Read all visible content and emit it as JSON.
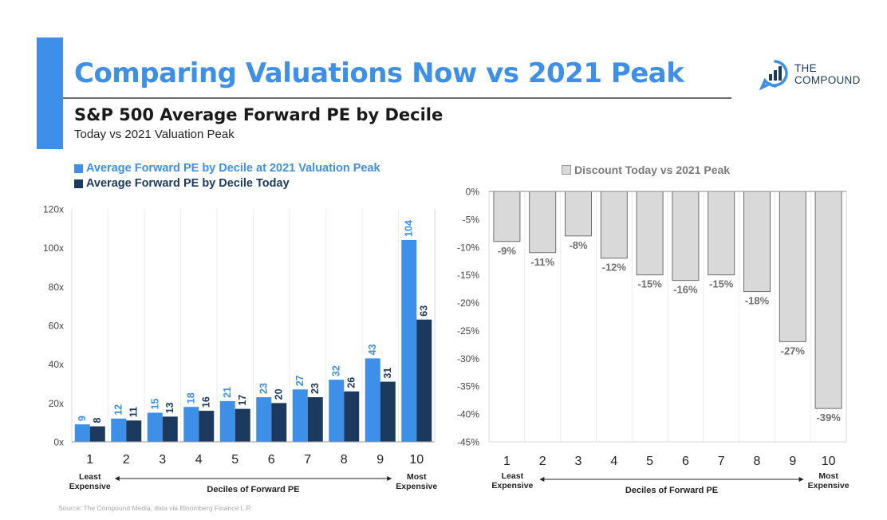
{
  "header": {
    "title": "Comparing Valuations Now vs 2021 Peak",
    "subtitle": "S&P 500 Average Forward PE by Decile",
    "sub_subtitle": "Today vs 2021 Valuation Peak"
  },
  "logo": {
    "line1": "THE",
    "line2": "COMPOUND",
    "icon": "bar-chart-chat-icon"
  },
  "colors": {
    "accent": "#3d8fe8",
    "peak": "#3d8fe8",
    "today": "#1c3a5e",
    "discount": "#d9d9d9",
    "axis": "#555555"
  },
  "source": "Source: The Compound Media, data via Bloomberg Finance L.P.",
  "chart_data": [
    {
      "type": "bar",
      "categories": [
        "1",
        "2",
        "3",
        "4",
        "5",
        "6",
        "7",
        "8",
        "9",
        "10"
      ],
      "series": [
        {
          "name": "Average Forward PE by Decile at 2021 Valuation Peak",
          "values": [
            9,
            12,
            15,
            18,
            21,
            23,
            27,
            32,
            43,
            104
          ]
        },
        {
          "name": "Average Forward PE by Decile Today",
          "values": [
            8,
            11,
            13,
            16,
            17,
            20,
            23,
            26,
            31,
            63
          ]
        }
      ],
      "yticks": [
        "0x",
        "20x",
        "40x",
        "60x",
        "80x",
        "100x",
        "120x"
      ],
      "ylim": [
        0,
        120
      ],
      "xlabel": "Deciles of Forward PE",
      "x_start_label": [
        "Least",
        "Expensive"
      ],
      "x_end_label": [
        "Most",
        "Expensive"
      ],
      "grid": true
    },
    {
      "type": "bar",
      "title": "Discount Today vs 2021 Peak",
      "categories": [
        "1",
        "2",
        "3",
        "4",
        "5",
        "6",
        "7",
        "8",
        "9",
        "10"
      ],
      "values": [
        -9,
        -11,
        -8,
        -12,
        -15,
        -16,
        -15,
        -18,
        -27,
        -39
      ],
      "value_labels": [
        "-9%",
        "-11%",
        "-8%",
        "-12%",
        "-15%",
        "-16%",
        "-15%",
        "-18%",
        "-27%",
        "-39%"
      ],
      "yticks": [
        "0%",
        "-5%",
        "-10%",
        "-15%",
        "-20%",
        "-25%",
        "-30%",
        "-35%",
        "-40%",
        "-45%"
      ],
      "ylim": [
        -45,
        0
      ],
      "xlabel": "Deciles of Forward PE",
      "x_start_label": [
        "Least",
        "Expensive"
      ],
      "x_end_label": [
        "Most",
        "Expensive"
      ],
      "grid": true
    }
  ]
}
